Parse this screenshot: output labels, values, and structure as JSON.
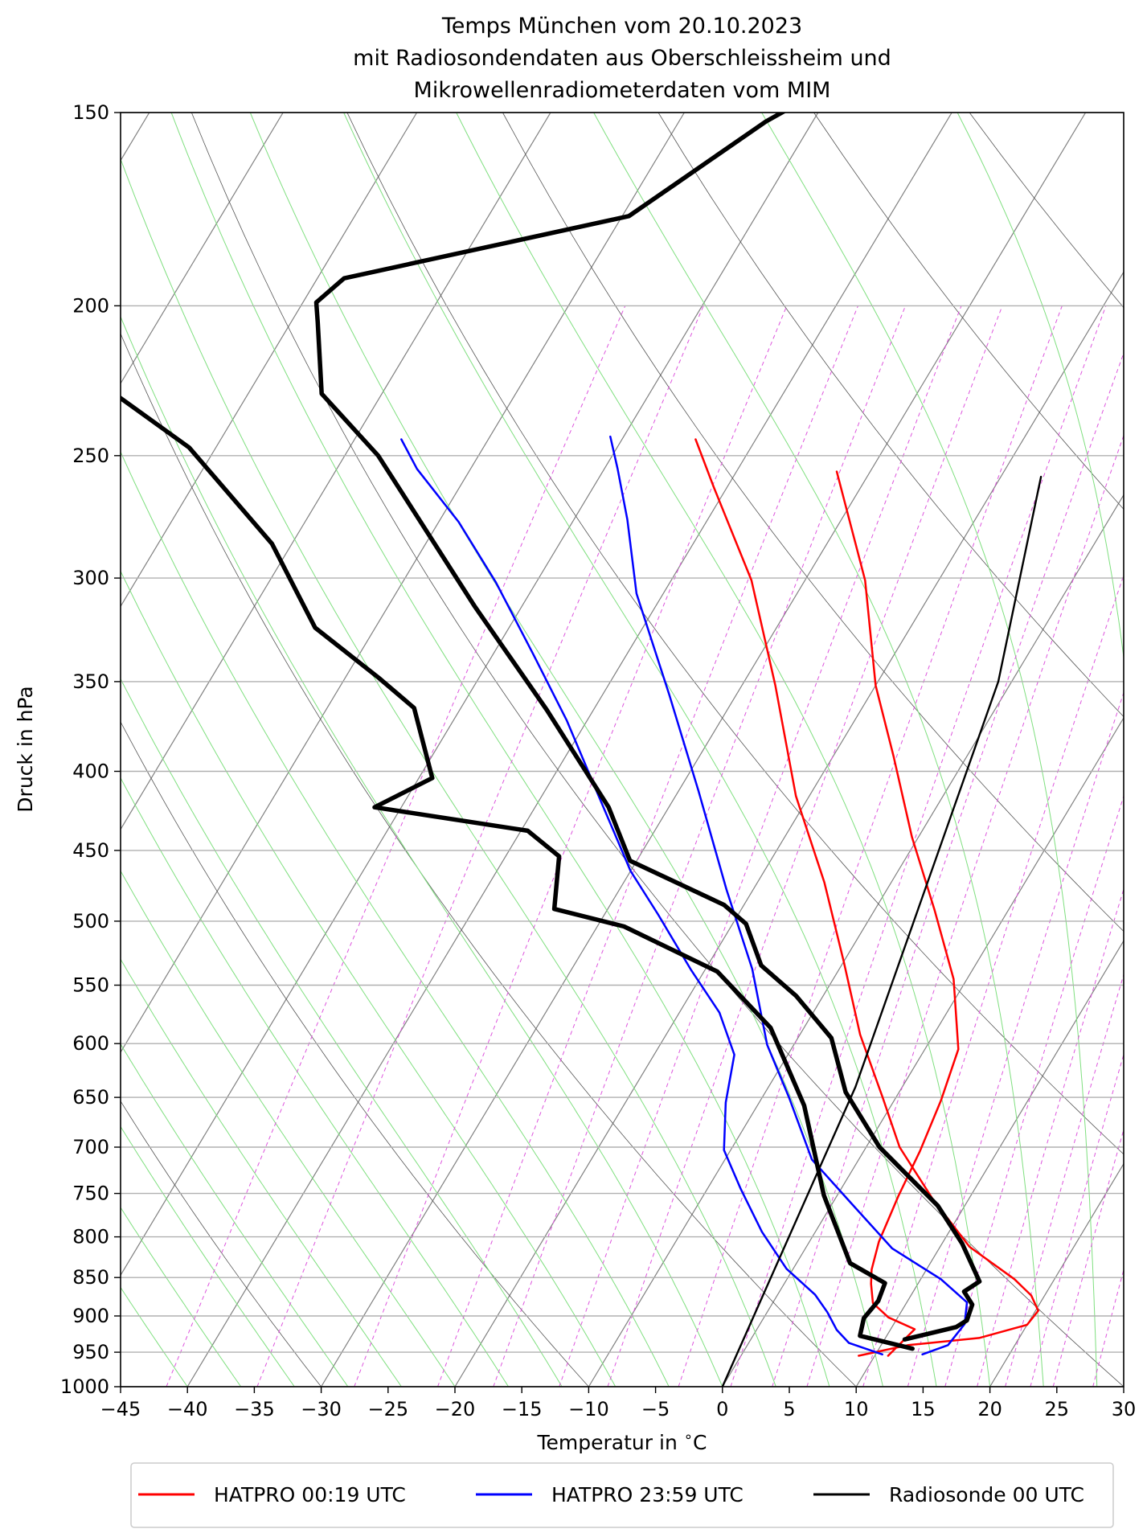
{
  "chart_data": {
    "type": "line",
    "title": [
      "Temps München vom 20.10.2023",
      "mit Radiosondendaten aus Oberschleissheim und",
      "Mikrowellenradiometerdaten vom MIM"
    ],
    "xlabel": "Temperatur in $^\\circ$C",
    "xlabel_parts": {
      "text": "Temperatur in ",
      "degree": "∘",
      "unit": "C"
    },
    "ylabel": "Druck in hPa",
    "xlim": [
      -45,
      30
    ],
    "ylim": [
      1000,
      150
    ],
    "yscale": "log",
    "skew": "skew-T log-p diagram",
    "xticks": [
      -45,
      -40,
      -35,
      -30,
      -25,
      -20,
      -15,
      -10,
      -5,
      0,
      5,
      10,
      15,
      20,
      25,
      30
    ],
    "xtick_labels": [
      "−45",
      "−40",
      "−35",
      "−30",
      "−25",
      "−20",
      "−15",
      "−10",
      "−5",
      "0",
      "5",
      "10",
      "15",
      "20",
      "25",
      "30"
    ],
    "yticks": [
      150,
      200,
      250,
      300,
      350,
      400,
      450,
      500,
      550,
      600,
      650,
      700,
      750,
      800,
      850,
      900,
      950,
      1000
    ],
    "ytick_labels": [
      "150",
      "200",
      "250",
      "300",
      "350",
      "400",
      "450",
      "500",
      "550",
      "600",
      "650",
      "700",
      "750",
      "800",
      "850",
      "900",
      "950",
      "1000"
    ],
    "grid": true,
    "legend_position": "bottom",
    "series": [
      {
        "name": "HATPRO 00:19 UTC",
        "color": "#ff0000",
        "width": 2.5,
        "points": [
          [
            8.8,
            955
          ],
          [
            12,
            940
          ],
          [
            17,
            930
          ],
          [
            20,
            912
          ],
          [
            20.2,
            893
          ],
          [
            19,
            873
          ],
          [
            17,
            852
          ],
          [
            12.2,
            812
          ],
          [
            7.2,
            755
          ],
          [
            2.5,
            700
          ],
          [
            -1,
            650
          ],
          [
            -5.5,
            592
          ],
          [
            -10,
            531
          ],
          [
            -15,
            472
          ],
          [
            -21,
            415
          ],
          [
            -27.5,
            352
          ],
          [
            -34,
            301
          ],
          [
            -41,
            262
          ],
          [
            -44.5,
            244
          ]
        ]
      },
      {
        "name": "HATPRO 00:19 UTC",
        "color": "#ff0000",
        "width": 2.5,
        "points": [
          [
            11,
            955
          ],
          [
            11.8,
            918
          ],
          [
            9.3,
            902
          ],
          [
            7.5,
            883
          ],
          [
            6.5,
            858
          ],
          [
            5.9,
            840
          ],
          [
            5.2,
            806
          ],
          [
            4.6,
            753
          ],
          [
            4.2,
            704
          ],
          [
            3.5,
            653
          ],
          [
            2.5,
            605
          ],
          [
            -1,
            545
          ],
          [
            -5.5,
            492
          ],
          [
            -10.5,
            441
          ],
          [
            -15.5,
            391
          ],
          [
            -20,
            352
          ],
          [
            -25.5,
            301
          ],
          [
            -32.5,
            256
          ]
        ]
      },
      {
        "name": "HATPRO 23:59 UTC",
        "color": "#0000ff",
        "width": 2.5,
        "points": [
          [
            10.5,
            953
          ],
          [
            7.5,
            937
          ],
          [
            6,
            919
          ],
          [
            4.5,
            895
          ],
          [
            2.8,
            872
          ],
          [
            -0.5,
            839
          ],
          [
            -4,
            794
          ],
          [
            -7.5,
            745
          ],
          [
            -10.5,
            703
          ],
          [
            -12.5,
            655
          ],
          [
            -14,
            610
          ],
          [
            -17,
            573
          ],
          [
            -21,
            538
          ],
          [
            -26,
            495
          ],
          [
            -30,
            464
          ],
          [
            -36,
            413
          ],
          [
            -41.5,
            371
          ],
          [
            -47,
            336
          ],
          [
            -53,
            302
          ],
          [
            -58.5,
            276
          ],
          [
            -64,
            255
          ],
          [
            -66.5,
            244
          ]
        ]
      },
      {
        "name": "HATPRO 23:59 UTC",
        "color": "#0000ff",
        "width": 2.5,
        "points": [
          [
            13.5,
            953
          ],
          [
            15,
            940
          ],
          [
            15.3,
            911
          ],
          [
            14.5,
            882
          ],
          [
            11.5,
            852
          ],
          [
            6.5,
            814
          ],
          [
            1.5,
            762
          ],
          [
            -3.5,
            713
          ],
          [
            -8,
            650
          ],
          [
            -12,
            601
          ],
          [
            -16.5,
            537
          ],
          [
            -22,
            477
          ],
          [
            -28.5,
            412
          ],
          [
            -35,
            357
          ],
          [
            -42,
            307
          ],
          [
            -46,
            275
          ],
          [
            -49,
            255
          ],
          [
            -51,
            243
          ]
        ]
      },
      {
        "name": "Radiosonde 00 UTC",
        "color": "#000000",
        "width": 5.5,
        "points": [
          [
            12.5,
            945
          ],
          [
            8,
            927
          ],
          [
            7.5,
            903
          ],
          [
            7.8,
            880
          ],
          [
            7.5,
            857
          ],
          [
            4,
            832
          ],
          [
            -1,
            752
          ],
          [
            -6.5,
            658
          ],
          [
            -12.5,
            586
          ],
          [
            -19,
            539
          ],
          [
            -28,
            504
          ],
          [
            -34,
            491
          ],
          [
            -36,
            454
          ],
          [
            -39.5,
            437
          ],
          [
            -52,
            422
          ],
          [
            -49,
            404
          ],
          [
            -53.5,
            364
          ],
          [
            -57.5,
            348
          ],
          [
            -64.5,
            323
          ],
          [
            -71.5,
            285
          ],
          [
            -82,
            247
          ],
          [
            -94,
            219
          ],
          [
            -98.5,
            214
          ],
          [
            -101.5,
            201
          ],
          [
            -97,
            198
          ],
          [
            -97,
            191
          ]
        ]
      },
      {
        "name": "Radiosonde 00 UTC",
        "color": "#000000",
        "width": 5.5,
        "points": [
          [
            11.5,
            932
          ],
          [
            14.8,
            915
          ],
          [
            15.3,
            906
          ],
          [
            15,
            885
          ],
          [
            13.8,
            868
          ],
          [
            14.5,
            855
          ],
          [
            11.5,
            808
          ],
          [
            8,
            764
          ],
          [
            1,
            700
          ],
          [
            -4,
            645
          ],
          [
            -7.5,
            595
          ],
          [
            -12,
            559
          ],
          [
            -16,
            534
          ],
          [
            -19,
            502
          ],
          [
            -21.5,
            488
          ],
          [
            -30.5,
            457
          ],
          [
            -34.5,
            422
          ],
          [
            -43.5,
            365
          ],
          [
            -53.5,
            313
          ],
          [
            -67.5,
            250
          ],
          [
            -74.5,
            228
          ],
          [
            -78,
            205
          ],
          [
            -79,
            199
          ],
          [
            -78,
            192
          ],
          [
            -59.5,
            175
          ],
          [
            -57.5,
            167
          ],
          [
            -53.5,
            152
          ],
          [
            -51.5,
            147
          ]
        ]
      },
      {
        "name": "",
        "color": "#000000",
        "width": 2.4,
        "points": [
          [
            0,
            1000
          ],
          [
            -3.5,
            640
          ],
          [
            -11,
            350
          ],
          [
            -17,
            258
          ]
        ]
      }
    ],
    "legend": [
      {
        "label": "HATPRO 00:19 UTC",
        "color": "#ff0000"
      },
      {
        "label": "HATPRO 23:59 UTC",
        "color": "#0000ff"
      },
      {
        "label": "Radiosonde 00 UTC",
        "color": "#000000"
      }
    ],
    "background_lines": {
      "isotherm_color": "#808080",
      "dry_adiabat_color": "#555555",
      "moist_adiabat_color": "#7fdf7f",
      "mixing_ratio_color": "#dd55dd"
    }
  }
}
